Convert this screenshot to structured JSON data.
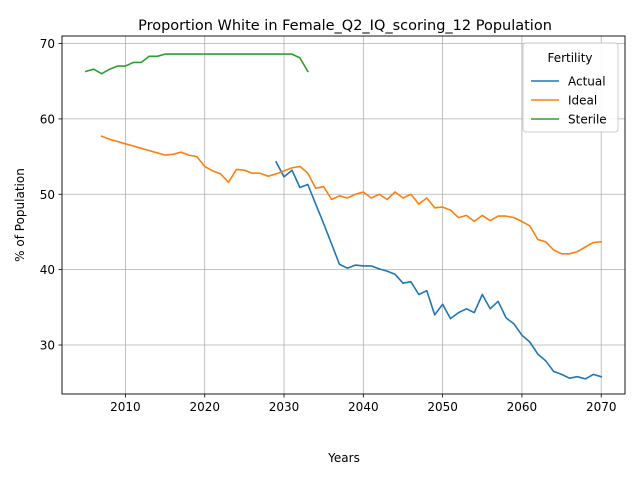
{
  "chart_data": {
    "type": "line",
    "title": "Proportion White in Female_Q2_IQ_scoring_12 Population",
    "xlabel": "Years",
    "ylabel": "% of Population",
    "xlim": [
      2002,
      2073
    ],
    "ylim": [
      23.5,
      71
    ],
    "xticks": [
      2010,
      2020,
      2030,
      2040,
      2050,
      2060,
      2070
    ],
    "yticks": [
      30,
      40,
      50,
      60,
      70
    ],
    "grid": true,
    "legend": {
      "title": "Fertility",
      "position": "top-right"
    },
    "series": [
      {
        "name": "Actual",
        "color": "#1f77b4",
        "x": [
          2029,
          2030,
          2031,
          2032,
          2033,
          2034,
          2035,
          2036,
          2037,
          2038,
          2039,
          2040,
          2041,
          2042,
          2043,
          2044,
          2045,
          2046,
          2047,
          2048,
          2049,
          2050,
          2051,
          2052,
          2053,
          2054,
          2055,
          2056,
          2057,
          2058,
          2059,
          2060,
          2061,
          2062,
          2063,
          2064,
          2065,
          2066,
          2067,
          2068,
          2069,
          2070
        ],
        "y": [
          54.3,
          52.3,
          53.2,
          50.9,
          51.3,
          48.7,
          46.1,
          43.4,
          40.7,
          40.2,
          40.6,
          40.5,
          40.5,
          40.1,
          39.8,
          39.4,
          38.2,
          38.4,
          36.7,
          37.2,
          34.0,
          35.4,
          33.5,
          34.3,
          34.8,
          34.3,
          36.7,
          34.8,
          35.8,
          33.6,
          32.8,
          31.3,
          30.4,
          28.8,
          27.9,
          26.5,
          26.1,
          25.6,
          25.8,
          25.5,
          26.1,
          25.8
        ]
      },
      {
        "name": "Ideal",
        "color": "#ff7f0e",
        "x": [
          2007,
          2008,
          2009,
          2010,
          2011,
          2012,
          2013,
          2014,
          2015,
          2016,
          2017,
          2018,
          2019,
          2020,
          2021,
          2022,
          2023,
          2024,
          2025,
          2026,
          2027,
          2028,
          2029,
          2030,
          2031,
          2032,
          2033,
          2034,
          2035,
          2036,
          2037,
          2038,
          2039,
          2040,
          2041,
          2042,
          2043,
          2044,
          2045,
          2046,
          2047,
          2048,
          2049,
          2050,
          2051,
          2052,
          2053,
          2054,
          2055,
          2056,
          2057,
          2058,
          2059,
          2060,
          2061,
          2062,
          2063,
          2064,
          2065,
          2066,
          2067,
          2068,
          2069,
          2070
        ],
        "y": [
          57.7,
          57.3,
          57.0,
          56.7,
          56.4,
          56.1,
          55.8,
          55.5,
          55.2,
          55.3,
          55.6,
          55.2,
          55.0,
          53.7,
          53.1,
          52.7,
          51.6,
          53.3,
          53.2,
          52.8,
          52.8,
          52.4,
          52.7,
          53.1,
          53.5,
          53.7,
          52.8,
          50.8,
          51.0,
          49.3,
          49.8,
          49.5,
          50.0,
          50.3,
          49.5,
          50.0,
          49.3,
          50.3,
          49.5,
          50.0,
          48.7,
          49.5,
          48.2,
          48.3,
          47.9,
          46.9,
          47.2,
          46.4,
          47.2,
          46.5,
          47.1,
          47.1,
          46.9,
          46.4,
          45.8,
          44.0,
          43.7,
          42.6,
          42.1,
          42.1,
          42.4,
          43.0,
          43.6,
          43.7
        ]
      },
      {
        "name": "Sterile",
        "color": "#2ca02c",
        "x": [
          2005,
          2006,
          2007,
          2008,
          2009,
          2010,
          2011,
          2012,
          2013,
          2014,
          2015,
          2016,
          2017,
          2018,
          2019,
          2020,
          2021,
          2022,
          2023,
          2024,
          2025,
          2026,
          2027,
          2028,
          2029,
          2030,
          2031,
          2032,
          2033
        ],
        "y": [
          66.3,
          66.6,
          66.0,
          66.6,
          67.0,
          67.0,
          67.5,
          67.5,
          68.3,
          68.3,
          68.6,
          68.6,
          68.6,
          68.6,
          68.6,
          68.6,
          68.6,
          68.6,
          68.6,
          68.6,
          68.6,
          68.6,
          68.6,
          68.6,
          68.6,
          68.6,
          68.6,
          68.1,
          66.3
        ]
      }
    ]
  }
}
